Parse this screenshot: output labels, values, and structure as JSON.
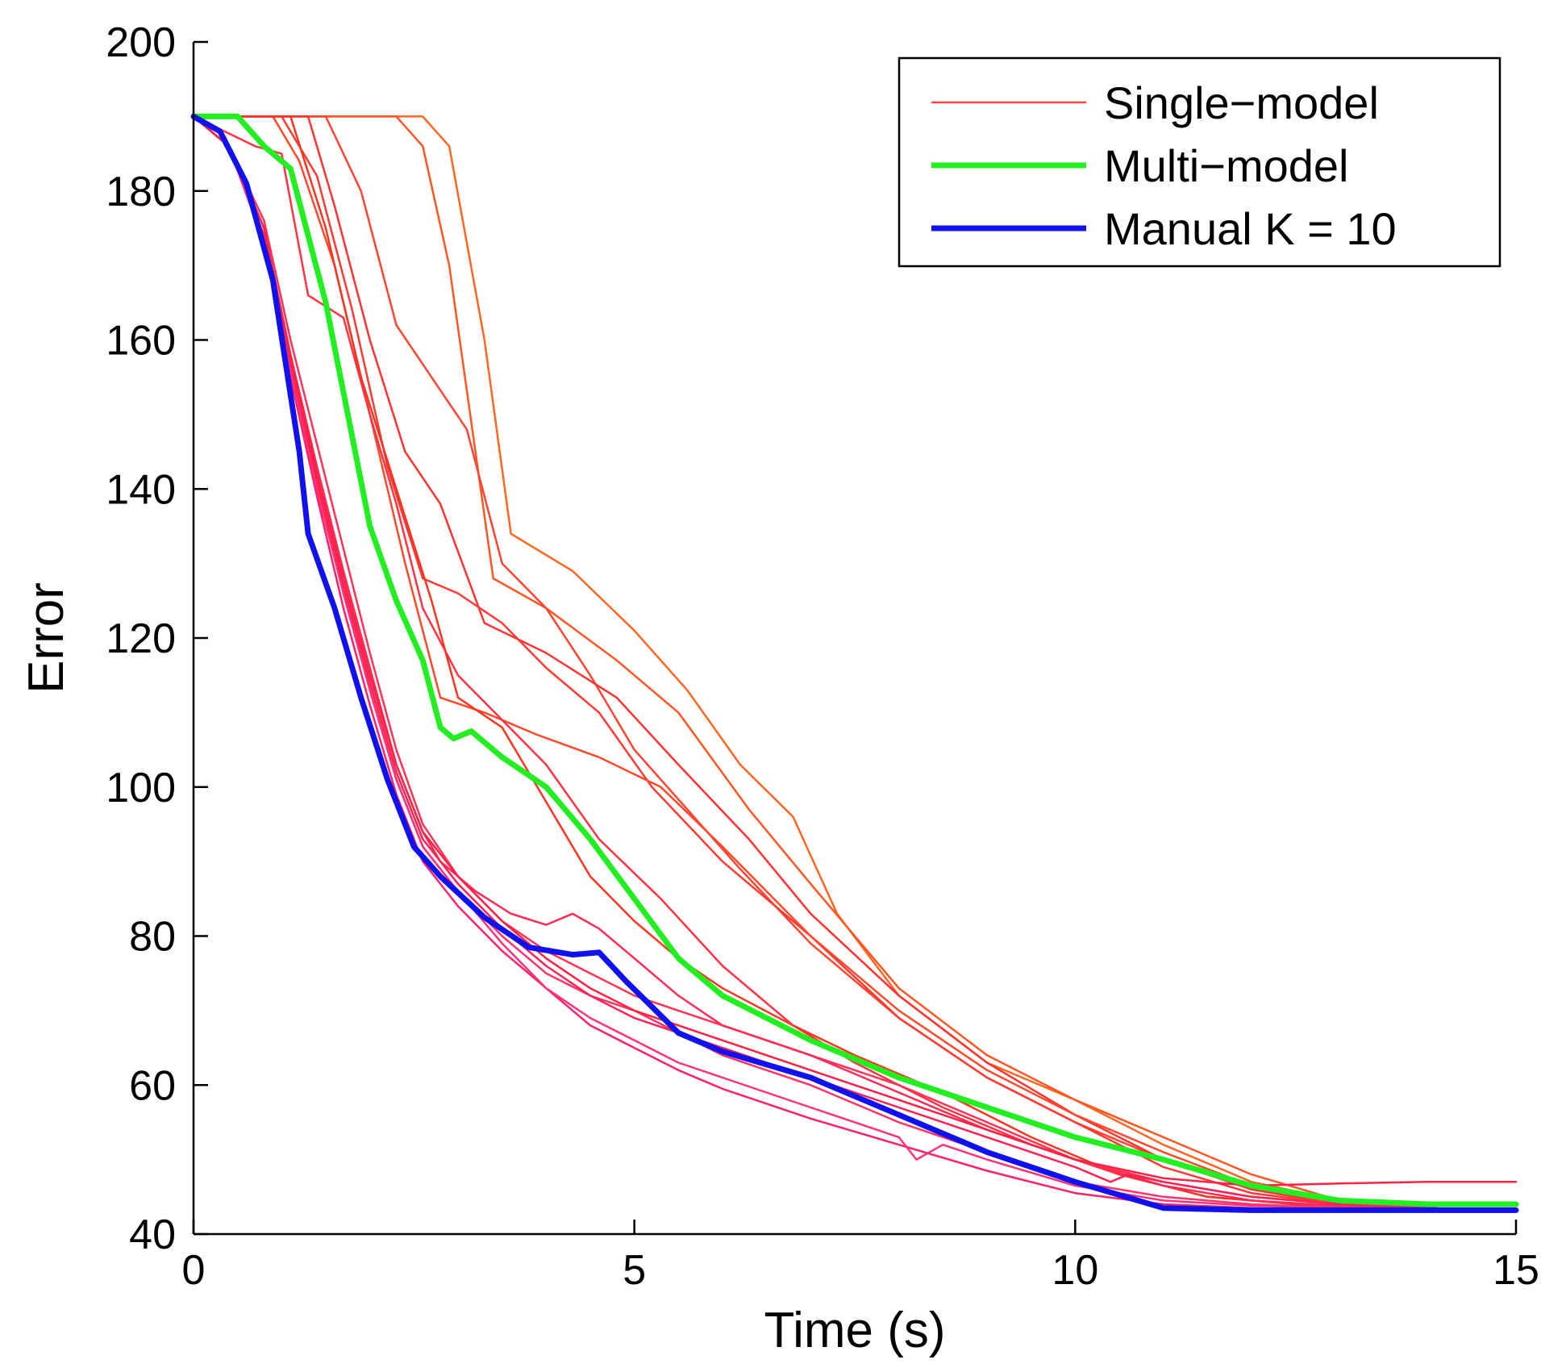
{
  "chart_data": {
    "type": "line",
    "title": "",
    "xlabel": "Time (s)",
    "ylabel": "Error",
    "xlim": [
      0,
      15
    ],
    "ylim": [
      40,
      200
    ],
    "xticks": [
      0,
      5,
      10,
      15
    ],
    "yticks": [
      40,
      60,
      80,
      100,
      120,
      140,
      160,
      180,
      200
    ],
    "x_tick_labels": [
      "0",
      "5",
      "10",
      "15"
    ],
    "y_tick_labels": [
      "40",
      "60",
      "80",
      "100",
      "120",
      "140",
      "160",
      "180",
      "200"
    ],
    "grid": false,
    "legend_position": "top-right",
    "legend": [
      {
        "label": "Single−model",
        "color": "#ff4444",
        "weight": "thin"
      },
      {
        "label": "Multi−model",
        "color": "#22ee22",
        "weight": "thick"
      },
      {
        "label": "Manual K = 10",
        "color": "#1111ee",
        "weight": "thick"
      }
    ],
    "series": [
      {
        "name": "Multi−model",
        "color": "#22ee22",
        "width": 7,
        "x": [
          0,
          0.5,
          0.8,
          1.1,
          1.5,
          2.0,
          2.3,
          2.6,
          2.8,
          2.95,
          3.15,
          3.5,
          4.0,
          4.5,
          5.0,
          5.5,
          6.0,
          7.0,
          8.0,
          9.0,
          10.0,
          11.0,
          12.0,
          13.0,
          14.0,
          15.0
        ],
        "y": [
          190,
          190,
          186,
          183,
          165,
          135,
          125,
          117,
          108,
          106.5,
          107.5,
          104,
          100,
          93,
          85,
          77,
          72,
          66,
          61,
          57,
          53,
          50,
          46.5,
          44.5,
          44,
          44
        ]
      },
      {
        "name": "Manual K = 10",
        "color": "#1111ee",
        "width": 7,
        "x": [
          0,
          0.3,
          0.6,
          0.9,
          1.2,
          1.3,
          1.6,
          1.9,
          2.2,
          2.5,
          2.8,
          3.3,
          3.8,
          4.3,
          4.6,
          4.9,
          5.5,
          6.0,
          7.0,
          8.0,
          9.0,
          10.0,
          11.0,
          12.0,
          13.0,
          14.0,
          15.0
        ],
        "y": [
          190,
          188,
          181,
          168,
          145,
          134,
          124,
          112,
          101,
          92,
          88,
          82.5,
          78.5,
          77.5,
          77.8,
          74,
          67,
          64.5,
          61,
          56,
          51,
          47,
          43.5,
          43.2,
          43.2,
          43.2,
          43.2
        ]
      },
      {
        "name": "",
        "color": "#ff6622",
        "x": [
          0,
          2.6,
          2.9,
          3.3,
          3.6,
          4.3,
          5.0,
          5.6,
          6.2,
          6.8,
          7.3,
          8.0,
          9.0,
          10.0,
          11.0,
          12.0,
          13.0,
          14.0,
          15.0
        ],
        "y": [
          190,
          190,
          186,
          160,
          134,
          129,
          121,
          113,
          103,
          96,
          83,
          72,
          63,
          58,
          52,
          47,
          44.5,
          43.5,
          43
        ]
      },
      {
        "name": "",
        "color": "#ff5522",
        "x": [
          0,
          2.3,
          2.6,
          2.9,
          3.4,
          4.0,
          4.8,
          5.5,
          6.3,
          7.0,
          8.0,
          9.0,
          10.0,
          11.0,
          12.0,
          13.0,
          14.0,
          15.0
        ],
        "y": [
          190,
          190,
          186,
          170,
          128,
          124,
          117,
          110,
          97,
          87,
          73,
          64,
          58,
          53,
          48,
          44.5,
          43.5,
          43
        ]
      },
      {
        "name": "",
        "color": "#ff4433",
        "x": [
          0,
          1.5,
          1.9,
          2.3,
          2.7,
          3.1,
          3.5,
          4.0,
          4.5,
          5.0,
          5.6,
          6.2,
          7.0,
          8.0,
          9.0,
          10.0,
          11.0,
          12.0,
          13.0,
          14.0,
          15.0
        ],
        "y": [
          190,
          190,
          180,
          162,
          155,
          148,
          130,
          124,
          115,
          105,
          97,
          89,
          79,
          69,
          61,
          55,
          50,
          46,
          44,
          43.5,
          43
        ]
      },
      {
        "name": "",
        "color": "#ff3333",
        "x": [
          0,
          1.3,
          1.6,
          2.0,
          2.4,
          2.8,
          3.3,
          4.0,
          4.8,
          5.5,
          6.3,
          7.0,
          8.0,
          9.0,
          10.0,
          11.0,
          12.0,
          13.0,
          14.0,
          15.0
        ],
        "y": [
          190,
          190,
          178,
          160,
          145,
          138,
          122,
          118,
          112,
          103,
          93,
          83,
          72,
          63,
          56,
          50,
          46,
          44,
          43.5,
          43
        ]
      },
      {
        "name": "",
        "color": "#ff3a33",
        "x": [
          0,
          1.0,
          1.4,
          1.8,
          2.2,
          2.6,
          3.0,
          3.5,
          4.0,
          4.6,
          5.2,
          6.0,
          7.0,
          8.0,
          9.0,
          10.0,
          11.0,
          12.0,
          13.0,
          14.0,
          15.0
        ],
        "y": [
          190,
          190,
          182,
          164,
          143,
          128,
          126,
          122,
          116,
          110,
          100,
          90,
          80,
          69,
          61,
          55,
          49,
          45.5,
          44,
          43.5,
          43
        ]
      },
      {
        "name": "",
        "color": "#ff4a2a",
        "x": [
          0,
          0.9,
          1.2,
          1.6,
          2.0,
          2.4,
          2.8,
          3.3,
          3.9,
          4.6,
          5.3,
          6.0,
          7.0,
          8.0,
          9.0,
          10.0,
          11.0,
          12.0,
          13.0,
          14.0,
          15.0
        ],
        "y": [
          190,
          190,
          184,
          170,
          150,
          130,
          112,
          110,
          107,
          104,
          100,
          92,
          80,
          70,
          62,
          56,
          51,
          46.5,
          44,
          43.5,
          43
        ]
      },
      {
        "name": "",
        "color": "#ff3344",
        "x": [
          0,
          0.7,
          1.0,
          1.3,
          1.7,
          2.0,
          2.3,
          2.6,
          3.0,
          3.5,
          4.0,
          4.6,
          5.3,
          6.0,
          6.8,
          7.5,
          8.5,
          9.5,
          10.5,
          11.5,
          12.5,
          13.5,
          15.0
        ],
        "y": [
          190,
          186,
          185,
          166,
          163,
          150,
          138,
          124,
          115,
          109,
          103,
          93,
          85,
          76,
          68,
          63,
          57,
          52,
          48,
          45,
          44,
          43.5,
          43
        ]
      },
      {
        "name": "",
        "color": "#ff3322",
        "x": [
          0,
          1.1,
          1.5,
          1.9,
          2.3,
          2.7,
          3.0,
          3.5,
          4.0,
          4.5,
          5.0,
          5.5,
          6.0,
          6.8,
          7.5,
          8.5,
          9.5,
          10.5,
          11.5,
          12.5,
          13.5,
          15.0
        ],
        "y": [
          190,
          190,
          175,
          155,
          140,
          125,
          112,
          108,
          98,
          88,
          82,
          77,
          73,
          68,
          64,
          59,
          53,
          48,
          45,
          44,
          43.5,
          43
        ]
      },
      {
        "name": "",
        "color": "#ff3355",
        "x": [
          0,
          0.4,
          0.8,
          1.1,
          1.4,
          1.7,
          2.0,
          2.3,
          2.6,
          3.0,
          3.5,
          4.0,
          4.5,
          5.0,
          5.5,
          6.0,
          7.0,
          8.0,
          9.0,
          10.0,
          11.0,
          12.0,
          13.0,
          14.0,
          15.0
        ],
        "y": [
          190,
          186,
          176,
          160,
          146,
          132,
          118,
          105,
          95,
          88,
          82,
          78,
          75,
          72,
          70,
          68,
          64,
          60,
          55,
          50,
          47,
          45,
          44,
          43.5,
          43
        ]
      },
      {
        "name": "",
        "color": "#ff2a55",
        "x": [
          0,
          0.4,
          0.8,
          1.1,
          1.4,
          1.7,
          2.0,
          2.3,
          2.6,
          2.8,
          3.2,
          3.6,
          4.0,
          4.3,
          4.6,
          5.0,
          5.5,
          6.0,
          7.0,
          8.0,
          9.0,
          10.0,
          11.0,
          12.0,
          13.0,
          14.0,
          15.0
        ],
        "y": [
          190,
          186,
          175,
          158,
          143,
          129,
          116,
          103,
          94,
          90,
          86,
          83,
          81.5,
          83,
          81,
          77,
          72,
          68,
          64,
          59,
          54,
          50,
          46.5,
          44.5,
          43.8,
          43.5,
          43
        ]
      },
      {
        "name": "",
        "color": "#ff3366",
        "x": [
          0,
          0.4,
          0.8,
          1.1,
          1.4,
          1.7,
          2.0,
          2.3,
          2.6,
          3.0,
          3.5,
          4.0,
          4.5,
          5.0,
          5.5,
          6.0,
          7.0,
          8.0,
          9.0,
          10.0,
          11.0,
          12.0,
          13.0,
          14.0,
          15.0
        ],
        "y": [
          190,
          186,
          174,
          156,
          140,
          126,
          113,
          101,
          92,
          86,
          80,
          75,
          72,
          70,
          67,
          64,
          60,
          55,
          51,
          47,
          45,
          44,
          43.5,
          43.2,
          43
        ]
      },
      {
        "name": "",
        "color": "#ff2266",
        "x": [
          0,
          0.4,
          0.8,
          1.1,
          1.4,
          1.7,
          2.0,
          2.3,
          2.6,
          3.0,
          3.5,
          4.0,
          4.5,
          5.0,
          5.5,
          6.0,
          7.0,
          8.0,
          9.0,
          10.0,
          11.0,
          12.0,
          13.0,
          14.0,
          15.0
        ],
        "y": [
          190,
          186,
          173,
          155,
          139,
          124,
          111,
          99,
          90,
          84,
          78,
          73,
          68,
          65,
          62,
          59.5,
          55.5,
          52,
          48.5,
          45.5,
          44,
          43.5,
          43.2,
          43,
          43
        ]
      },
      {
        "name": "",
        "color": "#ff3377",
        "x": [
          0,
          0.4,
          0.8,
          1.1,
          1.4,
          1.7,
          2.0,
          2.3,
          2.6,
          3.0,
          3.5,
          4.0,
          4.5,
          5.0,
          5.5,
          6.0,
          7.0,
          8.0,
          8.2,
          8.5,
          9.0,
          10.0,
          11.0,
          12.0,
          13.0,
          14.0,
          15.0
        ],
        "y": [
          190,
          186,
          173,
          156,
          140,
          126,
          113,
          101,
          92,
          86,
          79,
          73,
          69,
          66,
          63,
          61,
          57,
          53,
          50,
          52,
          50,
          46.5,
          44.5,
          43.8,
          43.5,
          43.3,
          43
        ]
      },
      {
        "name": "",
        "color": "#ff2255",
        "x": [
          0,
          0.4,
          0.8,
          1.1,
          1.4,
          1.7,
          2.0,
          2.3,
          2.6,
          3.0,
          3.5,
          4.0,
          4.5,
          5.0,
          5.5,
          6.0,
          7.0,
          8.0,
          9.0,
          10.0,
          10.4,
          10.6,
          11.0,
          12.0,
          13.0,
          14.0,
          15.0
        ],
        "y": [
          190,
          186,
          174,
          157,
          141,
          127,
          114,
          102,
          93,
          87,
          81,
          76,
          72,
          69,
          67,
          65,
          61,
          57,
          53,
          49,
          47,
          48,
          47,
          45,
          44,
          43.5,
          43
        ]
      },
      {
        "name": "",
        "color": "#ff2244",
        "x": [
          0,
          0.4,
          0.8,
          1.1,
          1.4,
          1.7,
          2.0,
          2.3,
          2.6,
          3.0,
          3.5,
          4.0,
          4.5,
          5.0,
          5.5,
          6.0,
          7.0,
          8.0,
          9.0,
          10.0,
          11.0,
          12.0,
          13.0,
          14.0,
          15.0
        ],
        "y": [
          190,
          186,
          175,
          158,
          142,
          128,
          115,
          103,
          94,
          88,
          82,
          77,
          73,
          70,
          68,
          66,
          62,
          58,
          54,
          50,
          47.5,
          46.5,
          46.8,
          47,
          47
        ]
      }
    ]
  }
}
